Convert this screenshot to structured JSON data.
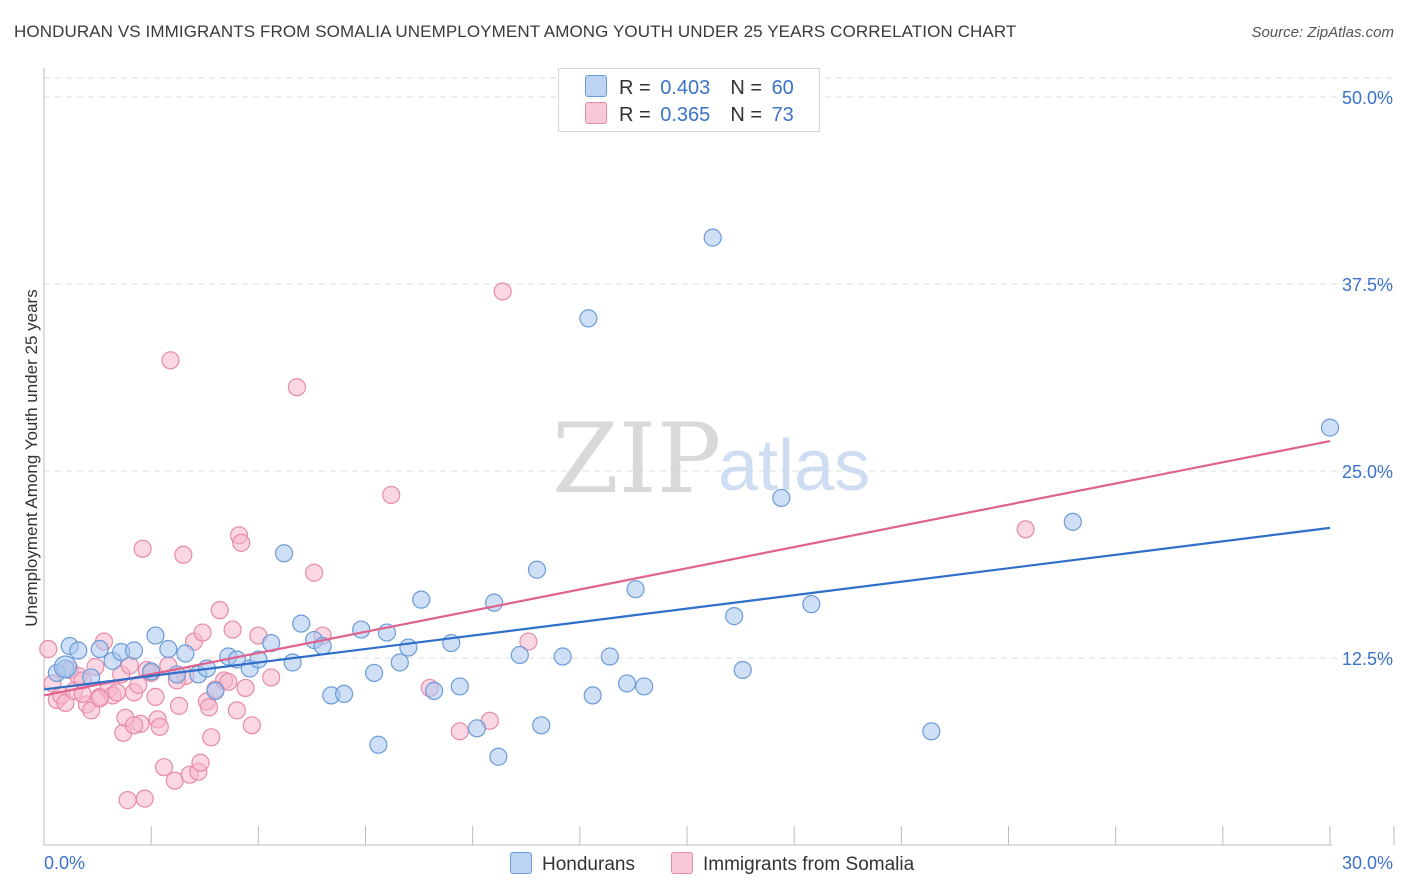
{
  "title": "HONDURAN VS IMMIGRANTS FROM SOMALIA UNEMPLOYMENT AMONG YOUTH UNDER 25 YEARS CORRELATION CHART",
  "source": "Source: ZipAtlas.com",
  "watermark": {
    "zip": "ZIP",
    "atlas": "atlas"
  },
  "legend": {
    "r_label": "R =",
    "n_label": "N =",
    "series": [
      {
        "name": "Hondurans",
        "r": "0.403",
        "n": "60"
      },
      {
        "name": "Immigrants from Somalia",
        "r": "0.365",
        "n": "73"
      }
    ]
  },
  "colors": {
    "hondurans_fill": "#a8c6ee",
    "hondurans_stroke": "#6b9bd8",
    "hondurans_line": "#2f6fc9",
    "somalia_fill": "#f6b6cb",
    "somalia_stroke": "#e88aa8",
    "somalia_line": "#e0628f",
    "tick_label": "#3b73c8",
    "grid": "#dddddd"
  },
  "chart_data": {
    "type": "scatter",
    "xlabel": "",
    "ylabel": "Unemployment Among Youth under 25 years",
    "xlim": [
      0,
      30
    ],
    "ylim": [
      0,
      50
    ],
    "x_tick_labels": [
      {
        "value": 0,
        "label": "0.0%"
      },
      {
        "value": 30,
        "label": "30.0%"
      }
    ],
    "y_tick_labels": [
      {
        "value": 12.5,
        "label": "12.5%"
      },
      {
        "value": 25,
        "label": "25.0%"
      },
      {
        "value": 37.5,
        "label": "37.5%"
      },
      {
        "value": 50,
        "label": "50.0%"
      }
    ],
    "series": [
      {
        "name": "Hondurans",
        "trend": {
          "x": [
            0,
            30
          ],
          "y": [
            10.4,
            21.2
          ]
        },
        "points": [
          [
            0.3,
            11.5
          ],
          [
            0.5,
            11.8
          ],
          [
            0.6,
            13.3
          ],
          [
            0.8,
            13.0
          ],
          [
            1.1,
            11.2
          ],
          [
            1.3,
            13.1
          ],
          [
            1.6,
            12.3
          ],
          [
            1.8,
            12.9
          ],
          [
            2.1,
            13.0
          ],
          [
            2.5,
            11.6
          ],
          [
            2.6,
            14.0
          ],
          [
            2.9,
            13.1
          ],
          [
            3.1,
            11.4
          ],
          [
            3.3,
            12.8
          ],
          [
            3.6,
            11.4
          ],
          [
            3.8,
            11.8
          ],
          [
            4.0,
            10.3
          ],
          [
            4.3,
            12.6
          ],
          [
            4.5,
            12.4
          ],
          [
            4.8,
            11.8
          ],
          [
            5.0,
            12.4
          ],
          [
            5.3,
            13.5
          ],
          [
            5.6,
            19.5
          ],
          [
            5.8,
            12.2
          ],
          [
            6.0,
            14.8
          ],
          [
            6.3,
            13.7
          ],
          [
            6.5,
            13.3
          ],
          [
            6.7,
            10.0
          ],
          [
            7.0,
            10.1
          ],
          [
            7.4,
            14.4
          ],
          [
            7.7,
            11.5
          ],
          [
            7.8,
            6.7
          ],
          [
            8.0,
            14.2
          ],
          [
            8.3,
            12.2
          ],
          [
            8.5,
            13.2
          ],
          [
            8.8,
            16.4
          ],
          [
            9.1,
            10.3
          ],
          [
            9.5,
            13.5
          ],
          [
            9.7,
            10.6
          ],
          [
            10.1,
            7.8
          ],
          [
            10.5,
            16.2
          ],
          [
            10.6,
            5.9
          ],
          [
            11.1,
            12.7
          ],
          [
            11.5,
            18.4
          ],
          [
            11.6,
            8.0
          ],
          [
            12.1,
            12.6
          ],
          [
            12.7,
            35.2
          ],
          [
            12.8,
            10.0
          ],
          [
            13.2,
            12.6
          ],
          [
            13.6,
            10.8
          ],
          [
            13.8,
            17.1
          ],
          [
            14.0,
            10.6
          ],
          [
            15.6,
            40.6
          ],
          [
            16.1,
            15.3
          ],
          [
            16.3,
            11.7
          ],
          [
            17.2,
            23.2
          ],
          [
            17.9,
            16.1
          ],
          [
            20.7,
            7.6
          ],
          [
            24.0,
            21.6
          ],
          [
            30.0,
            27.9
          ]
        ]
      },
      {
        "name": "Immigrants from Somalia",
        "trend": {
          "x": [
            0,
            30
          ],
          "y": [
            10.0,
            27.0
          ]
        },
        "points": [
          [
            0.1,
            13.1
          ],
          [
            0.2,
            10.8
          ],
          [
            0.3,
            9.7
          ],
          [
            0.4,
            10.0
          ],
          [
            0.5,
            9.5
          ],
          [
            0.6,
            11.7
          ],
          [
            0.7,
            10.3
          ],
          [
            0.8,
            11.3
          ],
          [
            0.9,
            11.0
          ],
          [
            1.0,
            9.4
          ],
          [
            1.1,
            9.0
          ],
          [
            1.2,
            11.9
          ],
          [
            1.3,
            9.9
          ],
          [
            1.4,
            13.6
          ],
          [
            1.5,
            10.4
          ],
          [
            1.6,
            10.0
          ],
          [
            1.7,
            10.2
          ],
          [
            1.8,
            11.4
          ],
          [
            1.85,
            7.5
          ],
          [
            1.9,
            8.5
          ],
          [
            1.95,
            3.0
          ],
          [
            2.0,
            12.0
          ],
          [
            2.1,
            10.2
          ],
          [
            2.2,
            10.7
          ],
          [
            2.25,
            8.1
          ],
          [
            2.3,
            19.8
          ],
          [
            2.35,
            3.1
          ],
          [
            2.4,
            11.7
          ],
          [
            2.5,
            11.5
          ],
          [
            2.6,
            9.9
          ],
          [
            2.65,
            8.4
          ],
          [
            2.7,
            7.9
          ],
          [
            2.8,
            5.2
          ],
          [
            2.9,
            12.0
          ],
          [
            2.95,
            32.4
          ],
          [
            3.05,
            4.3
          ],
          [
            3.15,
            9.3
          ],
          [
            3.25,
            19.4
          ],
          [
            3.3,
            11.3
          ],
          [
            3.4,
            4.7
          ],
          [
            3.5,
            13.6
          ],
          [
            3.6,
            4.9
          ],
          [
            3.65,
            5.5
          ],
          [
            3.7,
            14.2
          ],
          [
            3.8,
            9.6
          ],
          [
            3.85,
            9.2
          ],
          [
            3.9,
            7.2
          ],
          [
            4.0,
            10.4
          ],
          [
            4.1,
            15.7
          ],
          [
            4.2,
            11.0
          ],
          [
            4.3,
            10.9
          ],
          [
            4.4,
            14.4
          ],
          [
            4.5,
            9.0
          ],
          [
            4.55,
            20.7
          ],
          [
            4.6,
            20.2
          ],
          [
            4.7,
            10.5
          ],
          [
            4.85,
            8.0
          ],
          [
            5.0,
            14.0
          ],
          [
            5.3,
            11.2
          ],
          [
            5.9,
            30.6
          ],
          [
            6.3,
            18.2
          ],
          [
            6.5,
            14.0
          ],
          [
            8.1,
            23.4
          ],
          [
            9.0,
            10.5
          ],
          [
            9.7,
            7.6
          ],
          [
            10.4,
            8.3
          ],
          [
            10.7,
            37.0
          ],
          [
            11.3,
            13.6
          ],
          [
            22.9,
            21.1
          ],
          [
            3.1,
            11.0
          ],
          [
            1.3,
            9.8
          ],
          [
            0.9,
            10.1
          ],
          [
            2.1,
            8.0
          ]
        ]
      }
    ]
  }
}
